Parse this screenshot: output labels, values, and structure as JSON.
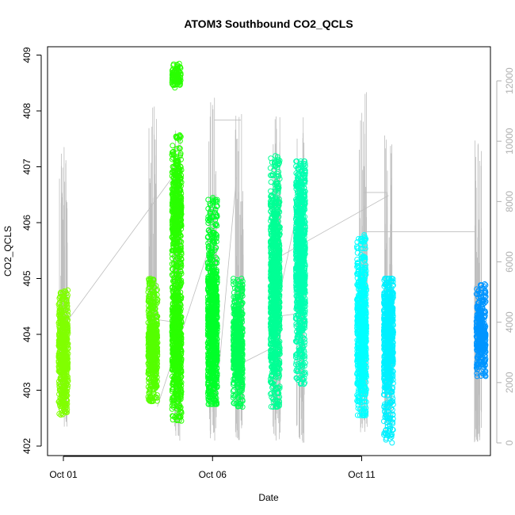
{
  "chart_data": {
    "type": "scatter",
    "title": "ATOM3 Southbound CO2_QCLS",
    "xlabel": "Date",
    "ylabel": "CO2_QCLS",
    "x_ticks": [
      "Oct 01",
      "Oct 06",
      "Oct 11"
    ],
    "x_tick_days": [
      1,
      6,
      11
    ],
    "xlim": [
      1.0,
      15.0
    ],
    "ylim": [
      402,
      409
    ],
    "y_ticks": [
      402,
      403,
      404,
      405,
      406,
      407,
      408,
      409
    ],
    "right_axis": {
      "label": "",
      "ylim": [
        0,
        12000
      ],
      "ticks": [
        0,
        2000,
        4000,
        6000,
        8000,
        10000,
        12000
      ],
      "color": "#b0b0b0"
    },
    "grid": false,
    "legend": "none",
    "scatter_series": [
      {
        "day": 1.0,
        "min": 402.55,
        "max": 404.8,
        "center": 403.6,
        "color": "#80ff00"
      },
      {
        "day": 4.0,
        "min": 402.8,
        "max": 405.0,
        "center": 403.8,
        "color": "#55ff00"
      },
      {
        "day": 4.0,
        "min": 403.9,
        "max": 404.0,
        "center": 403.95,
        "color": "#55ff00"
      },
      {
        "day": 4.8,
        "min": 402.45,
        "max": 405.5,
        "center": 403.9,
        "color": "#2aff00"
      },
      {
        "day": 4.8,
        "min": 405.5,
        "max": 407.6,
        "center": 406.2,
        "color": "#2aff00"
      },
      {
        "day": 4.8,
        "min": 408.4,
        "max": 408.85,
        "center": 408.6,
        "color": "#2aff00"
      },
      {
        "day": 6.0,
        "min": 402.75,
        "max": 406.45,
        "center": 404.1,
        "color": "#00ff2a"
      },
      {
        "day": 6.85,
        "min": 402.7,
        "max": 405.0,
        "center": 403.8,
        "color": "#00ff55"
      },
      {
        "day": 8.1,
        "min": 402.7,
        "max": 407.2,
        "center": 404.8,
        "color": "#00ff95"
      },
      {
        "day": 8.95,
        "min": 403.1,
        "max": 407.1,
        "center": 405.5,
        "color": "#00ffb0"
      },
      {
        "day": 11.0,
        "min": 402.55,
        "max": 405.8,
        "center": 404.0,
        "color": "#00ffff"
      },
      {
        "day": 11.9,
        "min": 402.05,
        "max": 405.0,
        "center": 404.0,
        "color": "#00f0ff"
      },
      {
        "day": 15.0,
        "min": 403.25,
        "max": 404.9,
        "center": 404.0,
        "color": "#0095ff"
      }
    ],
    "altitude_trace": {
      "color": "#bebebe",
      "units": "",
      "spikes": [
        {
          "day": 1.0,
          "low": 500,
          "high": 10300
        },
        {
          "day": 4.0,
          "low": 1400,
          "high": 11900
        },
        {
          "day": 4.8,
          "low": 0,
          "high": 10400
        },
        {
          "day": 6.0,
          "low": 0,
          "high": 11600
        },
        {
          "day": 6.9,
          "low": 0,
          "high": 11000
        },
        {
          "day": 8.15,
          "low": 0,
          "high": 11300
        },
        {
          "day": 8.95,
          "low": 0,
          "high": 10900
        },
        {
          "day": 11.05,
          "low": 0,
          "high": 11700
        },
        {
          "day": 11.9,
          "low": 0,
          "high": 10200
        },
        {
          "day": 14.9,
          "low": 0,
          "high": 10100
        }
      ],
      "connectors": [
        [
          [
            1.1,
            4000
          ],
          [
            4.65,
            8800
          ]
        ],
        [
          [
            4.05,
            4100
          ],
          [
            4.75,
            4000
          ]
        ],
        [
          [
            4.15,
            1200
          ],
          [
            6.0,
            6800
          ]
        ],
        [
          [
            6.05,
            10700
          ],
          [
            6.95,
            10700
          ]
        ],
        [
          [
            6.1,
            1200
          ],
          [
            6.8,
            8800
          ]
        ],
        [
          [
            6.9,
            2600
          ],
          [
            8.1,
            3200
          ]
        ],
        [
          [
            8.05,
            4000
          ],
          [
            8.95,
            8200
          ]
        ],
        [
          [
            8.2,
            4200
          ],
          [
            9.0,
            4300
          ]
        ],
        [
          [
            8.3,
            6200
          ],
          [
            11.9,
            8200
          ]
        ],
        [
          [
            11.05,
            8300
          ],
          [
            11.85,
            8300
          ]
        ],
        [
          [
            11.1,
            7000
          ],
          [
            14.85,
            7000
          ]
        ]
      ]
    }
  }
}
